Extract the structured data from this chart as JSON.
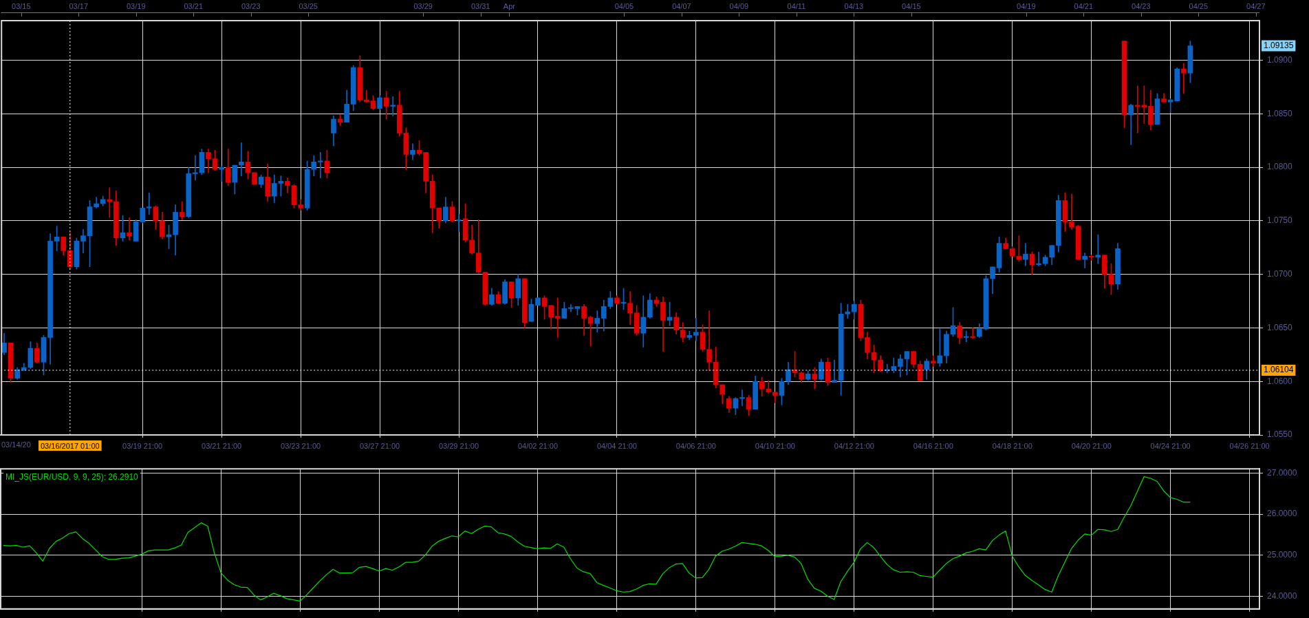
{
  "chart_data": [
    {
      "type": "candlestick",
      "categories": [
        null,
        null,
        null,
        null,
        null,
        null,
        null,
        null,
        null,
        null,
        "03/16/2017 01:00",
        null,
        null,
        null,
        null,
        null,
        null,
        null,
        null,
        null,
        null,
        "03/19 21:00",
        null,
        null,
        null,
        null,
        null,
        null,
        null,
        null,
        null,
        null,
        null,
        "03/21 21:00",
        null,
        null,
        null,
        null,
        null,
        null,
        null,
        null,
        null,
        null,
        null,
        "03/23 21:00",
        null,
        null,
        null,
        null,
        null,
        null,
        null,
        null,
        null,
        null,
        null,
        "03/27 21:00",
        null,
        null,
        null,
        null,
        null,
        null,
        null,
        null,
        null,
        null,
        null,
        "03/29 21:00",
        null,
        null,
        null,
        null,
        null,
        null,
        null,
        null,
        null,
        null,
        null,
        "04/02 21:00",
        null,
        null,
        null,
        null,
        null,
        null,
        null,
        null,
        null,
        null,
        null,
        "04/04 21:00",
        null,
        null,
        null,
        null,
        null,
        null,
        null,
        null,
        null,
        null,
        null,
        "04/06 21:00",
        null,
        null,
        null,
        null,
        null,
        null,
        null,
        null,
        null,
        null,
        null,
        "04/10 21:00",
        null,
        null,
        null,
        null,
        null,
        null,
        null,
        null,
        null,
        null,
        null,
        "04/12 21:00",
        null,
        null,
        null,
        null,
        null,
        null,
        null,
        null,
        null,
        null,
        null,
        "04/16 21:00",
        null,
        null,
        null,
        null,
        null,
        null,
        null,
        null,
        null,
        null,
        null,
        "04/18 21:00",
        null,
        null,
        null,
        null,
        null,
        null,
        null,
        null,
        null,
        null,
        null,
        "04/20 21:00",
        null,
        null,
        null,
        null,
        null,
        null,
        null,
        null,
        null,
        null,
        null,
        "04/24 21:00",
        null,
        null,
        null,
        null,
        null,
        null,
        null,
        null,
        null,
        null,
        null,
        "04/26 21:00",
        null
      ],
      "ohlc": [
        [
          1.0627,
          1.0645,
          1.0625,
          1.0636
        ],
        [
          1.0636,
          1.0636,
          1.0599,
          1.0603
        ],
        [
          1.0603,
          1.0613,
          1.0602,
          1.0611
        ],
        [
          1.0611,
          1.0617,
          1.061,
          1.0613
        ],
        [
          1.0613,
          1.0637,
          1.0612,
          1.0631
        ],
        [
          1.0631,
          1.0636,
          1.0617,
          1.0618
        ],
        [
          1.0618,
          1.0643,
          1.0606,
          1.0641
        ],
        [
          1.0641,
          1.0738,
          1.0616,
          1.0731
        ],
        [
          1.0731,
          1.0745,
          1.0722,
          1.0735
        ],
        [
          1.0735,
          1.0735,
          1.0718,
          1.0722
        ],
        [
          1.0722,
          1.0739,
          1.0705,
          1.0707
        ],
        [
          1.0707,
          1.0734,
          1.0705,
          1.0731
        ],
        [
          1.0731,
          1.0742,
          1.072,
          1.0736
        ],
        [
          1.0736,
          1.0769,
          1.0707,
          1.0763
        ],
        [
          1.0763,
          1.0772,
          1.0762,
          1.0766
        ],
        [
          1.0766,
          1.0773,
          1.0764,
          1.077
        ],
        [
          1.077,
          1.0781,
          1.0753,
          1.0768
        ],
        [
          1.0768,
          1.0778,
          1.0727,
          1.0734
        ],
        [
          1.0734,
          1.0755,
          1.0731,
          1.0739
        ],
        [
          1.0739,
          1.0753,
          1.0732,
          1.0736
        ],
        [
          1.0731,
          1.0751,
          1.0731,
          1.0749
        ],
        [
          1.0749,
          1.0762,
          1.0748,
          1.0762
        ],
        [
          1.0762,
          1.0776,
          1.0756,
          1.0763
        ],
        [
          1.0763,
          1.0764,
          1.0742,
          1.075
        ],
        [
          1.075,
          1.0758,
          1.0733,
          1.0735
        ],
        [
          1.0735,
          1.0746,
          1.0724,
          1.0737
        ],
        [
          1.0737,
          1.0765,
          1.0718,
          1.0758
        ],
        [
          1.0758,
          1.0768,
          1.0751,
          1.0754
        ],
        [
          1.0754,
          1.08,
          1.0753,
          1.0794
        ],
        [
          1.0794,
          1.0811,
          1.0788,
          1.0795
        ],
        [
          1.0795,
          1.0817,
          1.0793,
          1.0814
        ],
        [
          1.0814,
          1.0817,
          1.0795,
          1.0808
        ],
        [
          1.0808,
          1.0816,
          1.0797,
          1.0798
        ],
        [
          1.0798,
          1.0801,
          1.0787,
          1.08
        ],
        [
          1.08,
          1.0817,
          1.0783,
          1.0786
        ],
        [
          1.0786,
          1.0802,
          1.0775,
          1.0802
        ],
        [
          1.0802,
          1.0823,
          1.0792,
          1.0805
        ],
        [
          1.0805,
          1.0815,
          1.0789,
          1.0795
        ],
        [
          1.0795,
          1.0795,
          1.0784,
          1.0784
        ],
        [
          1.0784,
          1.0793,
          1.0781,
          1.0791
        ],
        [
          1.0791,
          1.0803,
          1.0768,
          1.0773
        ],
        [
          1.0773,
          1.0793,
          1.0767,
          1.0785
        ],
        [
          1.0785,
          1.0792,
          1.0773,
          1.0787
        ],
        [
          1.0787,
          1.079,
          1.0776,
          1.0783
        ],
        [
          1.0783,
          1.0784,
          1.0762,
          1.0765
        ],
        [
          1.0765,
          1.077,
          1.076,
          1.0762
        ],
        [
          1.0762,
          1.0806,
          1.076,
          1.0798
        ],
        [
          1.0798,
          1.0811,
          1.0792,
          1.0805
        ],
        [
          1.0805,
          1.0814,
          1.079,
          1.0806
        ],
        [
          1.0806,
          1.0816,
          1.079,
          1.0795
        ],
        [
          1.0832,
          1.0848,
          1.082,
          1.0845
        ],
        [
          1.0845,
          1.0849,
          1.0839,
          1.0842
        ],
        [
          1.0842,
          1.0872,
          1.0842,
          1.0859
        ],
        [
          1.0859,
          1.0895,
          1.0853,
          1.0893
        ],
        [
          1.0893,
          1.0904,
          1.0861,
          1.0863
        ],
        [
          1.0863,
          1.0872,
          1.0861,
          1.0861
        ],
        [
          1.0862,
          1.0867,
          1.0854,
          1.0855
        ],
        [
          1.0855,
          1.0867,
          1.0854,
          1.0865
        ],
        [
          1.0865,
          1.0871,
          1.0845,
          1.0857
        ],
        [
          1.0857,
          1.0866,
          1.0848,
          1.0858
        ],
        [
          1.0858,
          1.0871,
          1.0829,
          1.0832
        ],
        [
          1.0832,
          1.0837,
          1.0798,
          1.0812
        ],
        [
          1.0812,
          1.0822,
          1.0807,
          1.0816
        ],
        [
          1.0816,
          1.0825,
          1.0811,
          1.0813
        ],
        [
          1.0814,
          1.0814,
          1.0776,
          1.0787
        ],
        [
          1.0787,
          1.0793,
          1.0739,
          1.0762
        ],
        [
          1.0762,
          1.0762,
          1.0743,
          1.075
        ],
        [
          1.075,
          1.0772,
          1.0748,
          1.0763
        ],
        [
          1.0763,
          1.0768,
          1.0749,
          1.075
        ],
        [
          1.075,
          1.0756,
          1.074,
          1.0751
        ],
        [
          1.0752,
          1.0766,
          1.073,
          1.0732
        ],
        [
          1.0732,
          1.0746,
          1.0719,
          1.072
        ],
        [
          1.072,
          1.0751,
          1.0701,
          1.0702
        ],
        [
          1.0702,
          1.0702,
          1.0671,
          1.0672
        ],
        [
          1.0672,
          1.0687,
          1.0671,
          1.0681
        ],
        [
          1.0681,
          1.0684,
          1.0673,
          1.0673
        ],
        [
          1.0673,
          1.0695,
          1.0672,
          1.0693
        ],
        [
          1.0693,
          1.0693,
          1.0669,
          1.0678
        ],
        [
          1.0678,
          1.07,
          1.0671,
          1.0696
        ],
        [
          1.0696,
          1.0696,
          1.065,
          1.0655
        ],
        [
          1.0656,
          1.0677,
          1.0656,
          1.0672
        ],
        [
          1.0671,
          1.0678,
          1.0671,
          1.0678
        ],
        [
          1.0678,
          1.068,
          1.0658,
          1.067
        ],
        [
          1.0671,
          1.0671,
          1.0649,
          1.066
        ],
        [
          1.0661,
          1.0678,
          1.0641,
          1.0659
        ],
        [
          1.0659,
          1.0674,
          1.0659,
          1.0668
        ],
        [
          1.0668,
          1.0672,
          1.0665,
          1.0669
        ],
        [
          1.0668,
          1.067,
          1.0662,
          1.067
        ],
        [
          1.067,
          1.0672,
          1.0643,
          1.0659
        ],
        [
          1.066,
          1.0661,
          1.0633,
          1.0654
        ],
        [
          1.0654,
          1.0666,
          1.0646,
          1.0659
        ],
        [
          1.0659,
          1.0676,
          1.0647,
          1.067
        ],
        [
          1.067,
          1.0684,
          1.0668,
          1.0678
        ],
        [
          1.0678,
          1.068,
          1.0672,
          1.0673
        ],
        [
          1.0673,
          1.0687,
          1.0667,
          1.0674
        ],
        [
          1.0673,
          1.0684,
          1.0653,
          1.0664
        ],
        [
          1.0664,
          1.0671,
          1.0643,
          1.0645
        ],
        [
          1.0645,
          1.068,
          1.0632,
          1.066
        ],
        [
          1.066,
          1.0682,
          1.0659,
          1.0676
        ],
        [
          1.0676,
          1.0679,
          1.067,
          1.0673
        ],
        [
          1.0674,
          1.0679,
          1.0628,
          1.0657
        ],
        [
          1.0657,
          1.0674,
          1.0652,
          1.066
        ],
        [
          1.066,
          1.0664,
          1.0644,
          1.0648
        ],
        [
          1.0648,
          1.0655,
          1.0637,
          1.0641
        ],
        [
          1.0641,
          1.0647,
          1.0639,
          1.0643
        ],
        [
          1.0643,
          1.0659,
          1.0638,
          1.0646
        ],
        [
          1.0646,
          1.0653,
          1.0628,
          1.063
        ],
        [
          1.063,
          1.0666,
          1.061,
          1.0618
        ],
        [
          1.0618,
          1.0632,
          1.0594,
          1.0597
        ],
        [
          1.0597,
          1.0597,
          1.0579,
          1.0588
        ],
        [
          1.0584,
          1.0586,
          1.0571,
          1.0575
        ],
        [
          1.0575,
          1.0585,
          1.0569,
          1.0584
        ],
        [
          1.0584,
          1.0592,
          1.0577,
          1.0585
        ],
        [
          1.0585,
          1.0587,
          1.0568,
          1.0574
        ],
        [
          1.0574,
          1.0605,
          1.0574,
          1.06
        ],
        [
          1.06,
          1.0604,
          1.0586,
          1.0593
        ],
        [
          1.0593,
          1.0601,
          1.0589,
          1.059
        ],
        [
          1.059,
          1.059,
          1.058,
          1.0587
        ],
        [
          1.0587,
          1.0603,
          1.0578,
          1.06
        ],
        [
          1.06,
          1.0618,
          1.0597,
          1.0611
        ],
        [
          1.0611,
          1.0628,
          1.0604,
          1.0608
        ],
        [
          1.0608,
          1.0609,
          1.0599,
          1.0602
        ],
        [
          1.0602,
          1.061,
          1.0601,
          1.0607
        ],
        [
          1.0607,
          1.0613,
          1.0593,
          1.0602
        ],
        [
          1.0602,
          1.0621,
          1.0601,
          1.0618
        ],
        [
          1.0618,
          1.0622,
          1.0596,
          1.0599
        ],
        [
          1.0599,
          1.062,
          1.0599,
          1.0601
        ],
        [
          1.0601,
          1.0673,
          1.0587,
          1.0663
        ],
        [
          1.0663,
          1.0672,
          1.0659,
          1.0665
        ],
        [
          1.0665,
          1.0675,
          1.0658,
          1.0672
        ],
        [
          1.0672,
          1.0676,
          1.0638,
          1.0641
        ],
        [
          1.0641,
          1.0646,
          1.0621,
          1.0627
        ],
        [
          1.0627,
          1.0634,
          1.0608,
          1.062
        ],
        [
          1.062,
          1.0624,
          1.0609,
          1.061
        ],
        [
          1.061,
          1.0616,
          1.0608,
          1.0611
        ],
        [
          1.0611,
          1.0622,
          1.0608,
          1.0614
        ],
        [
          1.0614,
          1.0625,
          1.0604,
          1.0621
        ],
        [
          1.0621,
          1.0628,
          1.0606,
          1.0628
        ],
        [
          1.0628,
          1.0628,
          1.0613,
          1.0616
        ],
        [
          1.0616,
          1.0619,
          1.0601,
          1.0601
        ],
        [
          1.0611,
          1.0621,
          1.0602,
          1.0619
        ],
        [
          1.0619,
          1.0624,
          1.0614,
          1.0617
        ],
        [
          1.0617,
          1.0649,
          1.0614,
          1.0624
        ],
        [
          1.0624,
          1.0647,
          1.0617,
          1.0644
        ],
        [
          1.0644,
          1.0669,
          1.0642,
          1.0652
        ],
        [
          1.0652,
          1.0655,
          1.0635,
          1.0641
        ],
        [
          1.0641,
          1.0647,
          1.0637,
          1.0642
        ],
        [
          1.0642,
          1.065,
          1.064,
          1.0641
        ],
        [
          1.0642,
          1.0654,
          1.0641,
          1.0649
        ],
        [
          1.0649,
          1.0699,
          1.0648,
          1.0696
        ],
        [
          1.0696,
          1.0707,
          1.0682,
          1.0707
        ],
        [
          1.0706,
          1.0735,
          1.0702,
          1.0729
        ],
        [
          1.0729,
          1.0734,
          1.0724,
          1.0724
        ],
        [
          1.0724,
          1.0726,
          1.0717,
          1.0717
        ],
        [
          1.0717,
          1.0736,
          1.0712,
          1.0714
        ],
        [
          1.0714,
          1.0729,
          1.0708,
          1.0719
        ],
        [
          1.0719,
          1.0721,
          1.07,
          1.0709
        ],
        [
          1.0709,
          1.0721,
          1.0708,
          1.071
        ],
        [
          1.071,
          1.0718,
          1.0708,
          1.0716
        ],
        [
          1.0716,
          1.0727,
          1.0709,
          1.0727
        ],
        [
          1.0727,
          1.0774,
          1.0721,
          1.0769
        ],
        [
          1.0769,
          1.0776,
          1.074,
          1.0749
        ],
        [
          1.0749,
          1.0775,
          1.0742,
          1.0744
        ],
        [
          1.0745,
          1.0746,
          1.0714,
          1.0714
        ],
        [
          1.0714,
          1.072,
          1.0706,
          1.0717
        ],
        [
          1.0717,
          1.0718,
          1.0713,
          1.0716
        ],
        [
          1.0716,
          1.0737,
          1.071,
          1.0718
        ],
        [
          1.0718,
          1.0718,
          1.0687,
          1.07
        ],
        [
          1.07,
          1.071,
          1.0681,
          1.0691
        ],
        [
          1.0691,
          1.0729,
          1.0686,
          1.0724
        ],
        [
          1.0918,
          1.0918,
          1.0837,
          1.0849
        ],
        [
          1.0849,
          1.0859,
          1.0821,
          1.0858
        ],
        [
          1.0858,
          1.0876,
          1.0832,
          1.0857
        ],
        [
          1.0858,
          1.0876,
          1.0841,
          1.0856
        ],
        [
          1.0857,
          1.0872,
          1.0835,
          1.084
        ],
        [
          1.084,
          1.0869,
          1.084,
          1.0864
        ],
        [
          1.0864,
          1.0869,
          1.0861,
          1.0861
        ],
        [
          1.0861,
          1.0864,
          1.0851,
          1.0863
        ],
        [
          1.0862,
          1.0893,
          1.0862,
          1.0892
        ],
        [
          1.0892,
          1.0897,
          1.0869,
          1.0888
        ],
        [
          1.0888,
          1.0918,
          1.0879,
          1.09135
        ],
        null,
        null,
        null,
        null,
        null,
        null,
        null,
        null,
        null,
        null
      ],
      "colors": [
        "#0a64c8",
        "#e00000",
        "#0a64c8",
        "#0a64c8",
        "#0a64c8",
        "#e00000",
        "#0a64c8",
        "#0a64c8",
        "#0a64c8",
        "#e00000",
        "#e00000",
        "#0a64c8",
        "#0a64c8",
        "#0a64c8",
        "#0a64c8",
        "#0a64c8",
        "#e00000",
        "#e00000",
        "#0a64c8",
        "#e00000",
        "#0a64c8",
        "#0a64c8",
        "#0a64c8",
        "#e00000",
        "#e00000",
        "#0a64c8",
        "#0a64c8",
        "#e00000",
        "#0a64c8",
        "#0a64c8",
        "#0a64c8",
        "#e00000",
        "#e00000",
        "#0a64c8",
        "#e00000",
        "#0a64c8",
        "#0a64c8",
        "#e00000",
        "#e00000",
        "#0a64c8",
        "#e00000",
        "#0a64c8",
        "#0a64c8",
        "#e00000",
        "#e00000",
        "#e00000",
        "#0a64c8",
        "#0a64c8",
        "#0a64c8",
        "#e00000",
        "#0a64c8",
        "#e00000",
        "#0a64c8",
        "#0a64c8",
        "#e00000",
        "#e00000",
        "#e00000",
        "#0a64c8",
        "#e00000",
        "#0a64c8",
        "#e00000",
        "#e00000",
        "#0a64c8",
        "#e00000",
        "#e00000",
        "#e00000",
        "#e00000",
        "#0a64c8",
        "#e00000",
        "#0a64c8",
        "#e00000",
        "#e00000",
        "#e00000",
        "#e00000",
        "#0a64c8",
        "#e00000",
        "#0a64c8",
        "#e00000",
        "#0a64c8",
        "#e00000",
        "#0a64c8",
        "#0a64c8",
        "#e00000",
        "#e00000",
        "#e00000",
        "#0a64c8",
        "#0a64c8",
        "#0a64c8",
        "#e00000",
        "#e00000",
        "#0a64c8",
        "#0a64c8",
        "#0a64c8",
        "#e00000",
        "#0a64c8",
        "#e00000",
        "#e00000",
        "#0a64c8",
        "#0a64c8",
        "#e00000",
        "#e00000",
        "#0a64c8",
        "#e00000",
        "#e00000",
        "#0a64c8",
        "#0a64c8",
        "#e00000",
        "#e00000",
        "#e00000",
        "#e00000",
        "#e00000",
        "#0a64c8",
        "#0a64c8",
        "#e00000",
        "#0a64c8",
        "#e00000",
        "#e00000",
        "#e00000",
        "#0a64c8",
        "#0a64c8",
        "#e00000",
        "#e00000",
        "#0a64c8",
        "#e00000",
        "#0a64c8",
        "#e00000",
        "#0a64c8",
        "#0a64c8",
        "#0a64c8",
        "#0a64c8",
        "#e00000",
        "#e00000",
        "#e00000",
        "#e00000",
        "#0a64c8",
        "#0a64c8",
        "#0a64c8",
        "#0a64c8",
        "#e00000",
        "#e00000",
        "#0a64c8",
        "#e00000",
        "#0a64c8",
        "#0a64c8",
        "#0a64c8",
        "#e00000",
        "#0a64c8",
        "#e00000",
        "#0a64c8",
        "#0a64c8",
        "#0a64c8",
        "#0a64c8",
        "#e00000",
        "#e00000",
        "#e00000",
        "#0a64c8",
        "#e00000",
        "#0a64c8",
        "#0a64c8",
        "#0a64c8",
        "#0a64c8",
        "#e00000",
        "#e00000",
        "#e00000",
        "#0a64c8",
        "#e00000",
        "#0a64c8",
        "#e00000",
        "#e00000",
        "#0a64c8",
        "#e00000",
        "#0a64c8",
        "#e00000",
        "#e00000",
        "#e00000",
        "#0a64c8",
        "#e00000",
        "#0a64c8",
        "#0a64c8",
        "#e00000",
        "#0a64c8",
        null,
        null,
        null,
        null,
        null,
        null,
        null,
        null,
        null,
        null
      ],
      "ylim": [
        1.055,
        1.0937
      ],
      "yticks": [
        {
          "value": 1.055,
          "label": "1.0550"
        },
        {
          "value": 1.06,
          "label": "1.0600"
        },
        {
          "value": 1.065,
          "label": "1.0650"
        },
        {
          "value": 1.07,
          "label": "1.0700"
        },
        {
          "value": 1.075,
          "label": "1.0750"
        },
        {
          "value": 1.08,
          "label": "1.0800"
        },
        {
          "value": 1.085,
          "label": "1.0850"
        },
        {
          "value": 1.09,
          "label": "1.0900"
        }
      ],
      "x2lim": [
        "2017-03-14T07:00",
        "2017-04-27T03:00"
      ],
      "x2ticks": [
        {
          "value": "2017-03-15",
          "label": "03/15"
        },
        {
          "value": "2017-03-17",
          "label": "03/17"
        },
        {
          "value": "2017-03-19",
          "label": "03/19"
        },
        {
          "value": "2017-03-21",
          "label": "03/21"
        },
        {
          "value": "2017-03-23",
          "label": "03/23"
        },
        {
          "value": "2017-03-25",
          "label": "03/25"
        },
        {
          "value": "2017-03-29",
          "label": "03/29"
        },
        {
          "value": "2017-03-31",
          "label": "03/31"
        },
        {
          "value": "2017-04-01",
          "label": "Apr"
        },
        {
          "value": "2017-04-05",
          "label": "04/05"
        },
        {
          "value": "2017-04-07",
          "label": "04/07"
        },
        {
          "value": "2017-04-09",
          "label": "04/09"
        },
        {
          "value": "2017-04-11",
          "label": "04/11"
        },
        {
          "value": "2017-04-13",
          "label": "04/13"
        },
        {
          "value": "2017-04-15",
          "label": "04/15"
        },
        {
          "value": "2017-04-19",
          "label": "04/19"
        },
        {
          "value": "2017-04-21",
          "label": "04/21"
        },
        {
          "value": "2017-04-23",
          "label": "04/23"
        },
        {
          "value": "2017-04-25",
          "label": "04/25"
        },
        {
          "value": "2017-04-27",
          "label": "04/27"
        }
      ],
      "grid": true,
      "ref_lines": [
        {
          "axis": "y",
          "value": 1.06104,
          "label": "1.06104",
          "line_style": "dotted",
          "color": "#ffffff"
        },
        {
          "axis": "x",
          "value": "03/16/2017 01:00",
          "line_style": "dotted",
          "color": "#ffffff"
        }
      ],
      "annotations": [
        "03/14/20",
        "1.09135"
      ]
    },
    {
      "type": "line",
      "title": "MI_JS(EUR/USD, 9, 9, 25): 26.2910",
      "categories": [
        null,
        null,
        null,
        null,
        null,
        null,
        null,
        null,
        null,
        null,
        null,
        null,
        null,
        null,
        null,
        null,
        null,
        null,
        null,
        null,
        null,
        null,
        null,
        null,
        null,
        null,
        null,
        null,
        null,
        null,
        null,
        null,
        null,
        null,
        null,
        null,
        null,
        null,
        null,
        null,
        null,
        null,
        null,
        null,
        null,
        null,
        null,
        null,
        null,
        null,
        null,
        null,
        null,
        null,
        null,
        null,
        null,
        null,
        null,
        null,
        null,
        null,
        null,
        null,
        null,
        null,
        null,
        null,
        null,
        null,
        null,
        null,
        null,
        null,
        null,
        null,
        null,
        null,
        null,
        null,
        null,
        null,
        null,
        null,
        null,
        null,
        null,
        null,
        null,
        null,
        null,
        null,
        null,
        null,
        null,
        null,
        null,
        null,
        null,
        null,
        null,
        null,
        null,
        null,
        null,
        null,
        null,
        null,
        null,
        null,
        null,
        null,
        null,
        null,
        null,
        null,
        null,
        null,
        null,
        null,
        null,
        null,
        null,
        null,
        null,
        null,
        null,
        null,
        null,
        null,
        null,
        null,
        null,
        null,
        null,
        null,
        null,
        null,
        null,
        null,
        null,
        null,
        null,
        null,
        null,
        null,
        null,
        null,
        null,
        null,
        null,
        null,
        null,
        null,
        null,
        null,
        null,
        null,
        null,
        null,
        null,
        null,
        null,
        null,
        null,
        null,
        null,
        null,
        null,
        null,
        null,
        null,
        null,
        null,
        null,
        null,
        null,
        null,
        null,
        null,
        null,
        null,
        null,
        null,
        null,
        null,
        null,
        null,
        null,
        null,
        null
      ],
      "series": [
        {
          "color": "#00e000",
          "values": [
            25.24,
            25.23,
            25.24,
            25.2,
            25.23,
            25.06,
            24.86,
            25.17,
            25.34,
            25.42,
            25.53,
            25.57,
            25.41,
            25.29,
            25.13,
            24.97,
            24.9,
            24.9,
            24.93,
            24.94,
            24.98,
            25.03,
            25.11,
            25.13,
            25.13,
            25.13,
            25.18,
            25.25,
            25.56,
            25.67,
            25.79,
            25.71,
            25.06,
            24.58,
            24.4,
            24.29,
            24.23,
            24.22,
            24.04,
            23.92,
            23.99,
            24.08,
            24.02,
            23.95,
            23.92,
            23.89,
            24.04,
            24.21,
            24.38,
            24.53,
            24.66,
            24.57,
            24.57,
            24.58,
            24.71,
            24.73,
            24.68,
            24.62,
            24.68,
            24.64,
            24.72,
            24.83,
            24.83,
            24.86,
            25.01,
            25.22,
            25.34,
            25.41,
            25.47,
            25.45,
            25.59,
            25.53,
            25.63,
            25.71,
            25.69,
            25.55,
            25.52,
            25.46,
            25.33,
            25.22,
            25.19,
            25.16,
            25.18,
            25.17,
            25.28,
            25.2,
            24.92,
            24.69,
            24.6,
            24.56,
            24.34,
            24.27,
            24.21,
            24.14,
            24.11,
            24.12,
            24.18,
            24.27,
            24.31,
            24.3,
            24.55,
            24.7,
            24.79,
            24.8,
            24.57,
            24.45,
            24.46,
            24.66,
            24.98,
            25.1,
            25.15,
            25.22,
            25.31,
            25.29,
            25.27,
            25.23,
            25.12,
            24.97,
            24.98,
            25.0,
            24.96,
            24.8,
            24.42,
            24.2,
            24.13,
            24.01,
            23.93,
            24.36,
            24.61,
            24.83,
            25.16,
            25.31,
            25.19,
            24.98,
            24.78,
            24.65,
            24.59,
            24.6,
            24.59,
            24.51,
            24.49,
            24.47,
            24.64,
            24.8,
            24.92,
            24.98,
            25.06,
            25.1,
            25.16,
            25.13,
            25.36,
            25.49,
            25.59,
            24.98,
            24.72,
            24.51,
            24.39,
            24.28,
            24.17,
            24.11,
            24.51,
            24.84,
            25.17,
            25.37,
            25.52,
            25.49,
            25.63,
            25.62,
            25.58,
            25.63,
            25.93,
            26.21,
            26.56,
            26.91,
            26.87,
            26.79,
            26.56,
            26.4,
            26.36,
            26.29,
            26.29,
            null,
            null,
            null,
            null,
            null,
            null,
            null,
            null,
            null,
            null
          ]
        }
      ],
      "ylim": [
        23.7,
        27.1
      ],
      "yticks": [
        {
          "value": 24,
          "label": "24.0000"
        },
        {
          "value": 25,
          "label": "25.0000"
        },
        {
          "value": 26,
          "label": "26.0000"
        },
        {
          "value": 27,
          "label": "27.0000"
        }
      ],
      "grid": true,
      "tick_labels": "y"
    }
  ]
}
